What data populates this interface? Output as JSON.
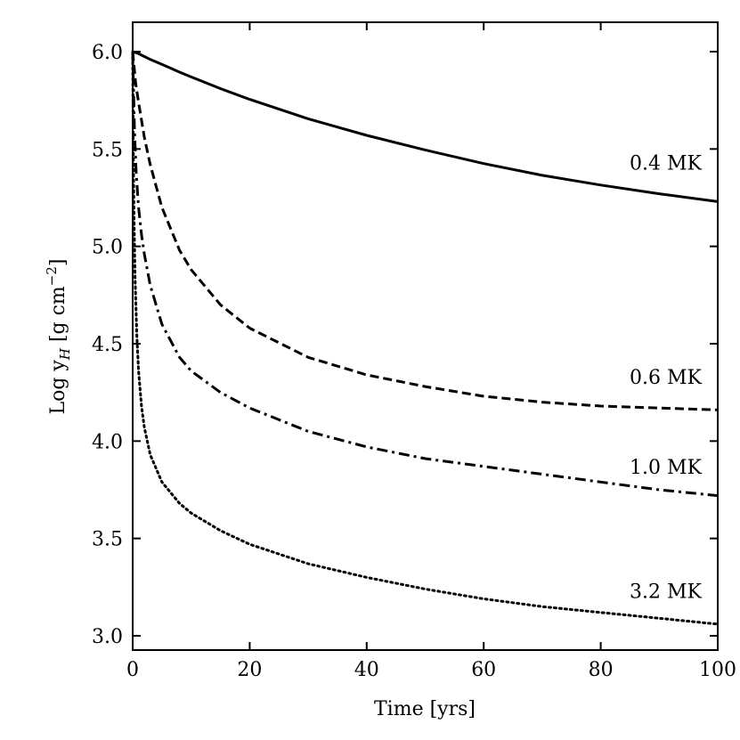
{
  "chart_data": {
    "type": "line",
    "title": "",
    "xlabel": "Time [yrs]",
    "ylabel_prefix": "Log y",
    "ylabel_sub": "H",
    "ylabel_units": " [g cm",
    "ylabel_sup": "−2",
    "ylabel_close": "]",
    "xlim": [
      0,
      100
    ],
    "ylim": [
      2.92,
      6.15
    ],
    "xticks": [
      0,
      20,
      40,
      60,
      80,
      100
    ],
    "yticks": [
      3.0,
      3.5,
      4.0,
      4.5,
      5.0,
      5.5,
      6.0
    ],
    "xtick_labels": [
      "0",
      "20",
      "40",
      "60",
      "80",
      "100"
    ],
    "ytick_labels": [
      "3.0",
      "3.5",
      "4.0",
      "4.5",
      "5.0",
      "5.5",
      "6.0"
    ],
    "grid": false,
    "legend": "none",
    "series": [
      {
        "name": "0.4 MK",
        "style": "solid",
        "label_position": [
          87,
          5.43
        ],
        "x": [
          0,
          1,
          2,
          3,
          5,
          8,
          10,
          15,
          20,
          30,
          40,
          50,
          60,
          70,
          80,
          90,
          100
        ],
        "y": [
          6.0,
          5.99,
          5.975,
          5.96,
          5.935,
          5.895,
          5.87,
          5.81,
          5.755,
          5.655,
          5.57,
          5.495,
          5.425,
          5.365,
          5.315,
          5.27,
          5.23
        ]
      },
      {
        "name": "0.6 MK",
        "style": "dashed",
        "label_position": [
          87,
          4.33
        ],
        "x": [
          0,
          0.5,
          1,
          2,
          3,
          5,
          8,
          10,
          15,
          20,
          30,
          40,
          50,
          60,
          70,
          80,
          90,
          100
        ],
        "y": [
          6.0,
          5.84,
          5.74,
          5.56,
          5.42,
          5.2,
          4.98,
          4.88,
          4.7,
          4.58,
          4.43,
          4.34,
          4.28,
          4.23,
          4.2,
          4.18,
          4.17,
          4.16
        ]
      },
      {
        "name": "1.0 MK",
        "style": "dashdot",
        "label_position": [
          87,
          3.87
        ],
        "x": [
          0,
          0.3,
          0.6,
          1,
          1.5,
          2,
          3,
          5,
          8,
          10,
          15,
          20,
          30,
          40,
          50,
          60,
          70,
          80,
          90,
          100
        ],
        "y": [
          6.0,
          5.6,
          5.38,
          5.2,
          5.06,
          4.96,
          4.8,
          4.6,
          4.43,
          4.36,
          4.25,
          4.17,
          4.05,
          3.97,
          3.91,
          3.87,
          3.83,
          3.79,
          3.75,
          3.72
        ],
        "_note_clamp": "values below"
      },
      {
        "name": "3.2 MK",
        "style": "dotted",
        "label_position": [
          87,
          3.23
        ],
        "x": [
          0,
          0.1,
          0.2,
          0.4,
          0.7,
          1,
          1.5,
          2,
          3,
          5,
          8,
          10,
          15,
          20,
          30,
          40,
          50,
          60,
          70,
          80,
          90,
          100
        ],
        "y": [
          6.0,
          5.5,
          5.2,
          4.85,
          4.55,
          4.36,
          4.18,
          4.07,
          3.93,
          3.79,
          3.68,
          3.63,
          3.54,
          3.47,
          3.37,
          3.3,
          3.24,
          3.19,
          3.15,
          3.12,
          3.09,
          3.06
        ]
      }
    ]
  }
}
